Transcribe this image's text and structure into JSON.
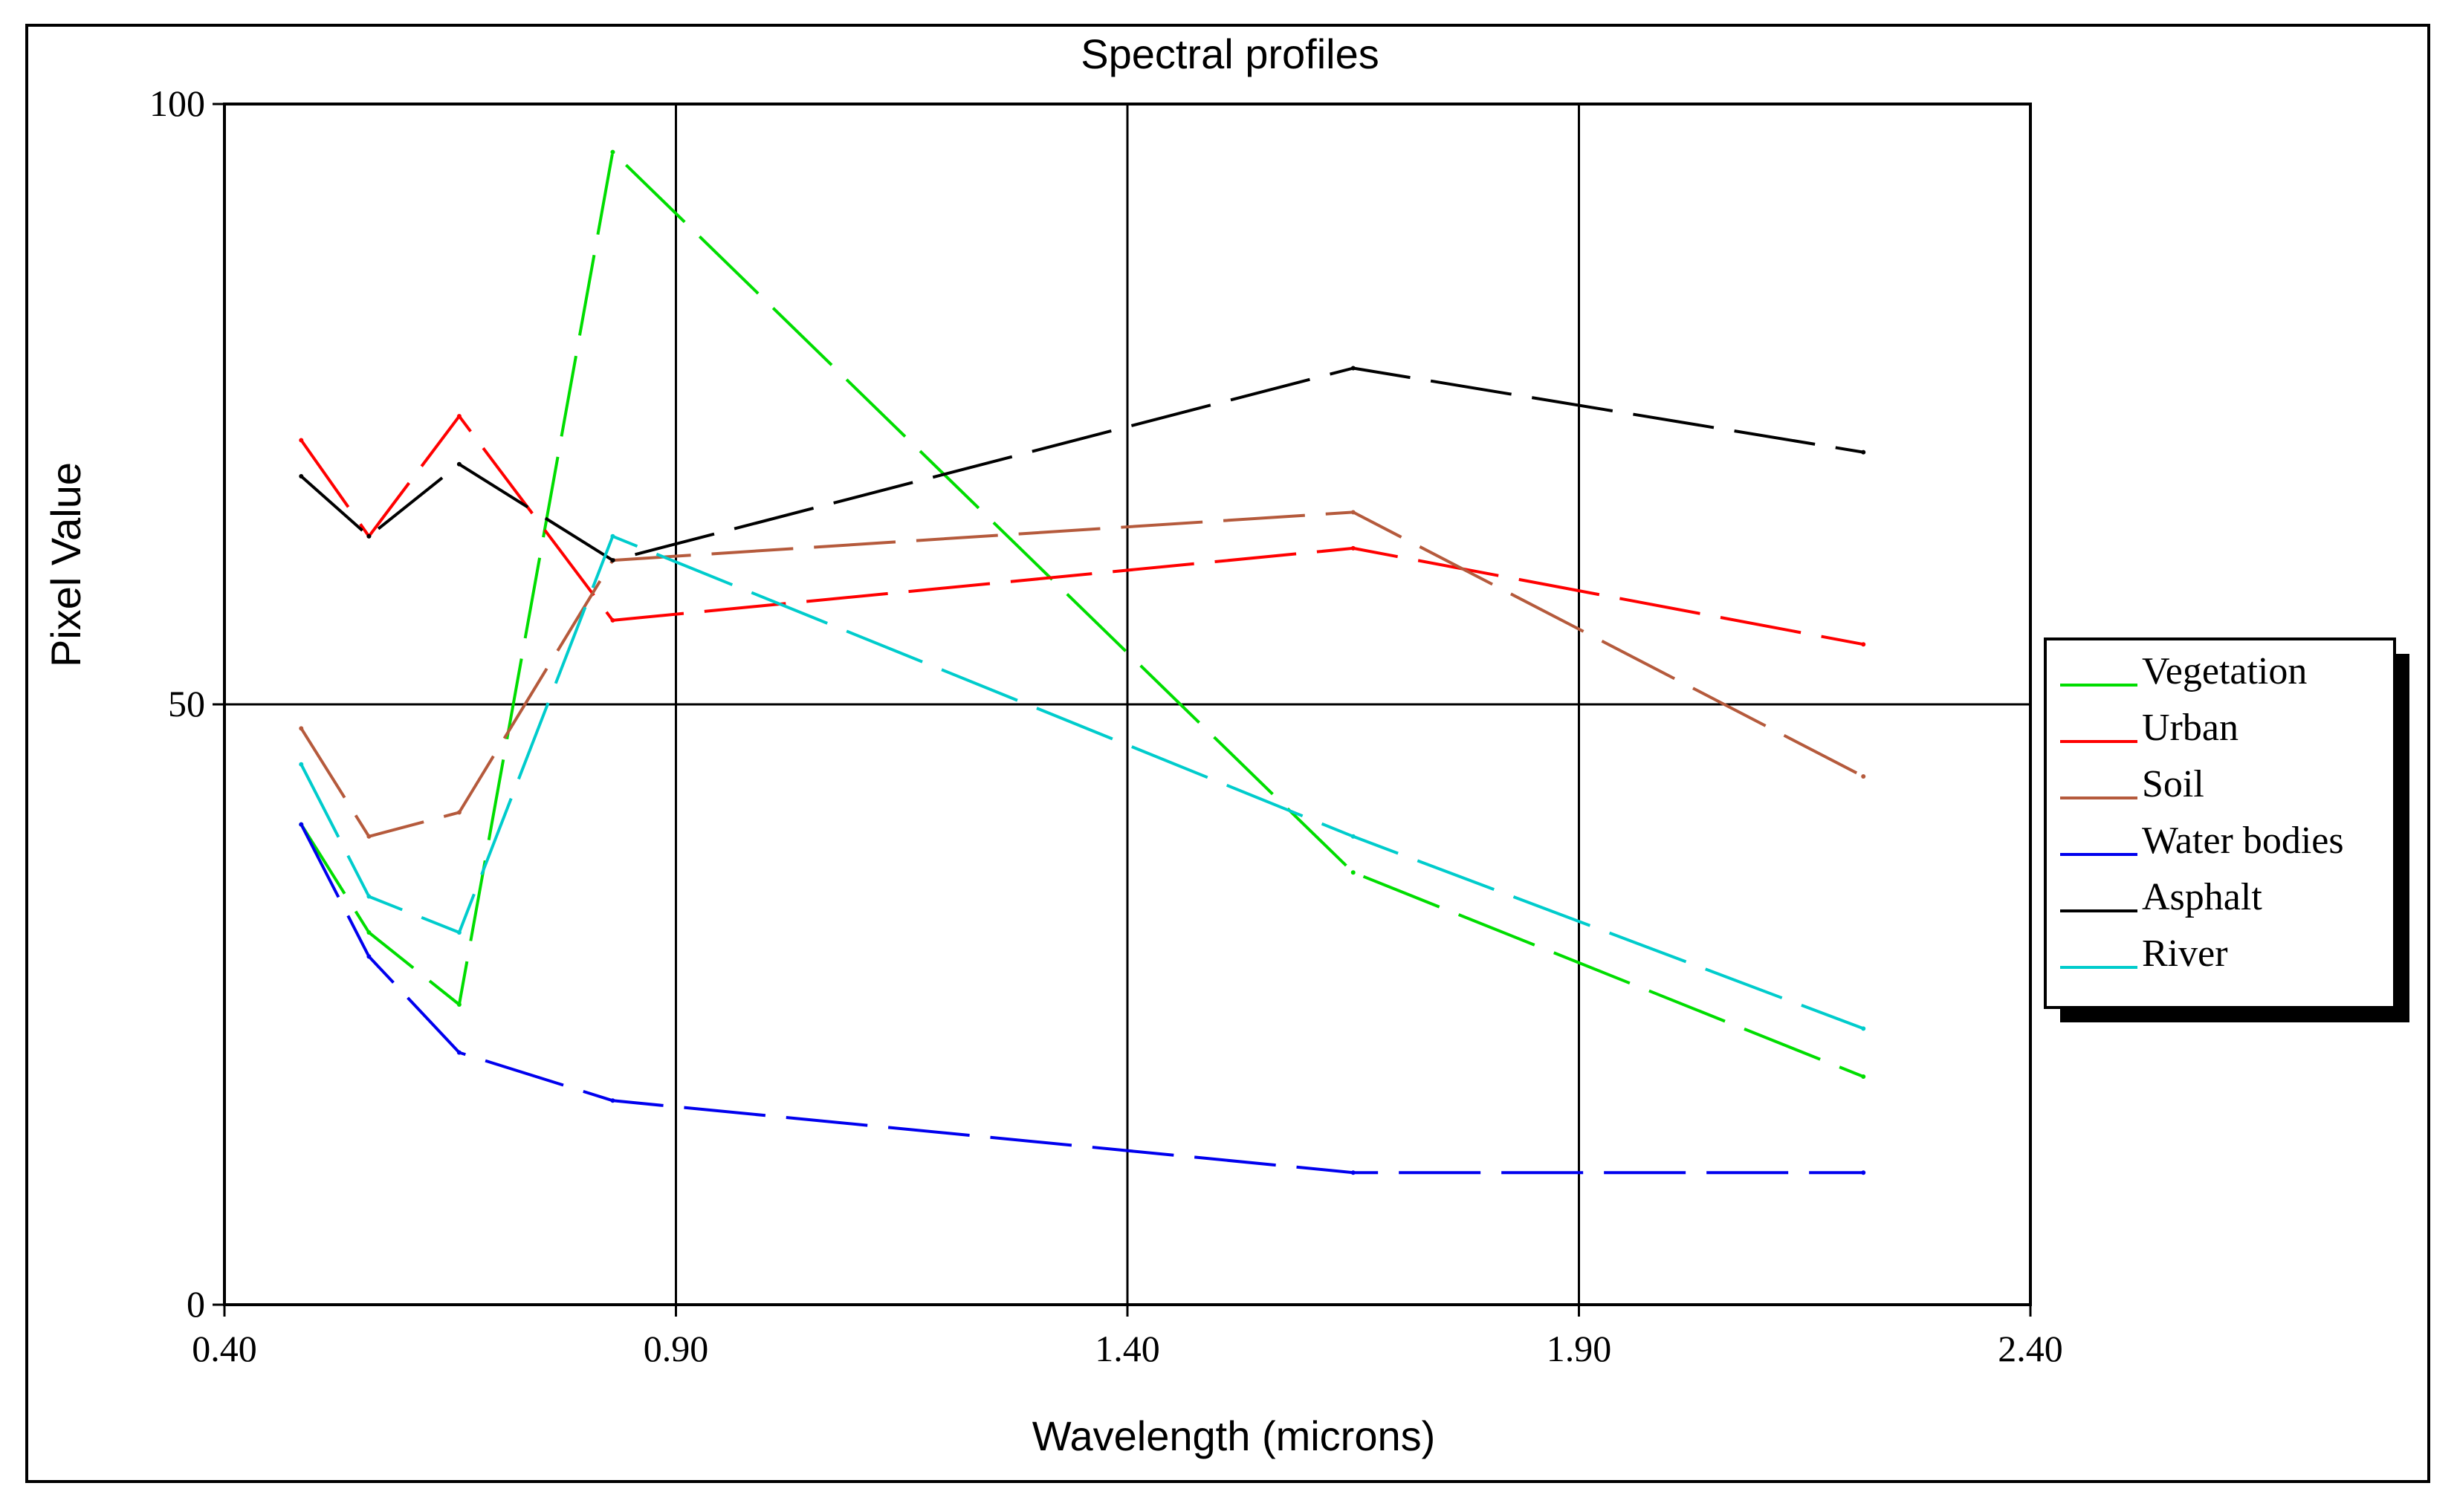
{
  "chart_data": {
    "type": "line",
    "title": "Spectral profiles",
    "xlabel": "Wavelength (microns)",
    "ylabel": "Pixel Value",
    "xlim": [
      0.4,
      2.4
    ],
    "ylim": [
      0,
      100
    ],
    "xticks": [
      0.4,
      0.9,
      1.4,
      1.9,
      2.4
    ],
    "xtick_labels": [
      "0.40",
      "0.90",
      "1.40",
      "1.90",
      "2.40"
    ],
    "yticks": [
      0,
      50,
      100
    ],
    "ytick_labels": [
      "0",
      "50",
      "100"
    ],
    "grid": true,
    "legend_position": "right",
    "x": [
      0.485,
      0.56,
      0.66,
      0.83,
      1.65,
      2.215
    ],
    "series": [
      {
        "name": "Vegetation",
        "color": "#00dd00",
        "values": [
          40,
          31,
          25,
          96,
          36,
          19
        ]
      },
      {
        "name": "Urban",
        "color": "#ff0000",
        "values": [
          72,
          64,
          74,
          57,
          63,
          55
        ]
      },
      {
        "name": "Soil",
        "color": "#b55a3c",
        "values": [
          48,
          39,
          41,
          62,
          66,
          44
        ]
      },
      {
        "name": "Water bodies",
        "color": "#0000ee",
        "values": [
          40,
          29,
          21,
          17,
          11,
          11
        ]
      },
      {
        "name": "Asphalt",
        "color": "#000000",
        "values": [
          69,
          64,
          70,
          62,
          78,
          71
        ]
      },
      {
        "name": "River",
        "color": "#00cccc",
        "values": [
          45,
          34,
          31,
          64,
          39,
          23
        ]
      }
    ]
  }
}
